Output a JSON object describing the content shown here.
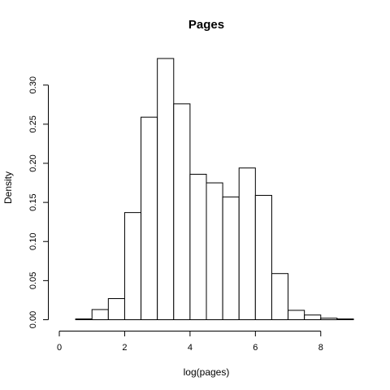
{
  "chart_data": {
    "type": "bar",
    "subtype": "histogram",
    "title": "Pages",
    "xlabel": "log(pages)",
    "ylabel": "Density",
    "bin_width": 0.5,
    "bins": [
      {
        "x0": 0.0,
        "x1": 0.5,
        "density": 0.0
      },
      {
        "x0": 0.5,
        "x1": 1.0,
        "density": 0.001
      },
      {
        "x0": 1.0,
        "x1": 1.5,
        "density": 0.013
      },
      {
        "x0": 1.5,
        "x1": 2.0,
        "density": 0.027
      },
      {
        "x0": 2.0,
        "x1": 2.5,
        "density": 0.137
      },
      {
        "x0": 2.5,
        "x1": 3.0,
        "density": 0.259
      },
      {
        "x0": 3.0,
        "x1": 3.5,
        "density": 0.334
      },
      {
        "x0": 3.5,
        "x1": 4.0,
        "density": 0.276
      },
      {
        "x0": 4.0,
        "x1": 4.5,
        "density": 0.186
      },
      {
        "x0": 4.5,
        "x1": 5.0,
        "density": 0.175
      },
      {
        "x0": 5.0,
        "x1": 5.5,
        "density": 0.157
      },
      {
        "x0": 5.5,
        "x1": 6.0,
        "density": 0.194
      },
      {
        "x0": 6.0,
        "x1": 6.5,
        "density": 0.159
      },
      {
        "x0": 6.5,
        "x1": 7.0,
        "density": 0.059
      },
      {
        "x0": 7.0,
        "x1": 7.5,
        "density": 0.012
      },
      {
        "x0": 7.5,
        "x1": 8.0,
        "density": 0.006
      },
      {
        "x0": 8.0,
        "x1": 8.5,
        "density": 0.002
      },
      {
        "x0": 8.5,
        "x1": 9.0,
        "density": 0.001
      }
    ],
    "xlim": [
      0,
      9
    ],
    "ylim": [
      0,
      0.334
    ],
    "x_ticks": [
      {
        "value": 0,
        "label": "0"
      },
      {
        "value": 2,
        "label": "2"
      },
      {
        "value": 4,
        "label": "4"
      },
      {
        "value": 6,
        "label": "6"
      },
      {
        "value": 8,
        "label": "8"
      }
    ],
    "y_ticks": [
      {
        "value": 0.0,
        "label": "0.00"
      },
      {
        "value": 0.05,
        "label": "0.05"
      },
      {
        "value": 0.1,
        "label": "0.10"
      },
      {
        "value": 0.15,
        "label": "0.15"
      },
      {
        "value": 0.2,
        "label": "0.20"
      },
      {
        "value": 0.25,
        "label": "0.25"
      },
      {
        "value": 0.3,
        "label": "0.30"
      }
    ],
    "grid": false,
    "bar_fill": "#ffffff",
    "bar_stroke": "#000000"
  }
}
